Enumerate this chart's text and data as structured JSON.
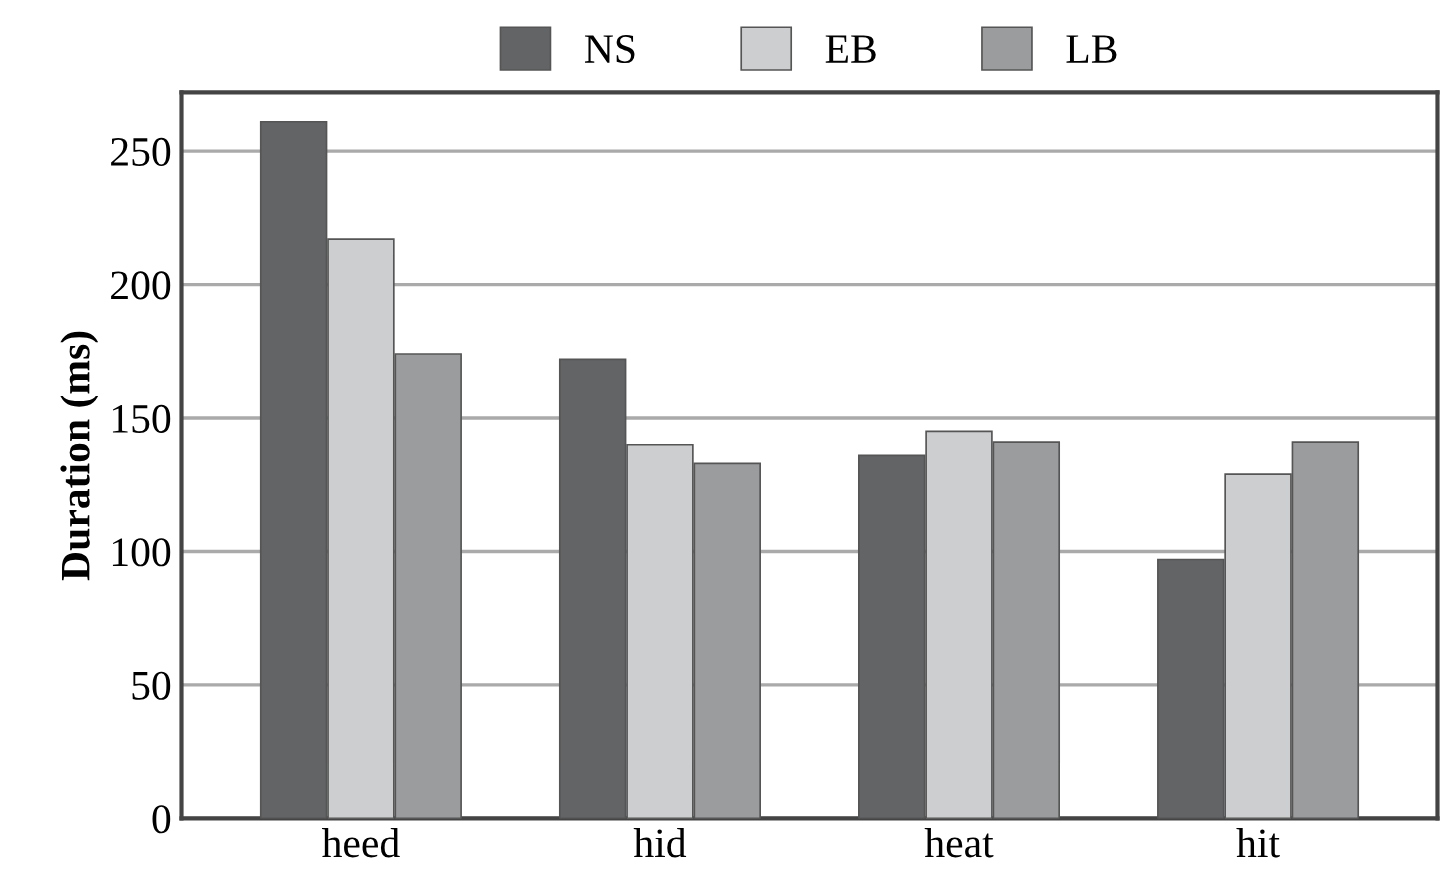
{
  "chart_data": {
    "type": "bar",
    "ylabel": "Duration (ms)",
    "categories": [
      "heed",
      "hid",
      "heat",
      "hit"
    ],
    "series": [
      {
        "name": "NS",
        "color": "#636466",
        "values": [
          261,
          172,
          136,
          97
        ]
      },
      {
        "name": "EB",
        "color": "#cdcecf",
        "values": [
          217,
          140,
          145,
          129
        ]
      },
      {
        "name": "LB",
        "color": "#9a9c9e",
        "values": [
          174,
          133,
          141,
          141
        ]
      }
    ],
    "ylim": [
      0,
      272
    ],
    "yticks": [
      0,
      50,
      100,
      150,
      200,
      250
    ],
    "grid": "y",
    "legend": "top"
  }
}
